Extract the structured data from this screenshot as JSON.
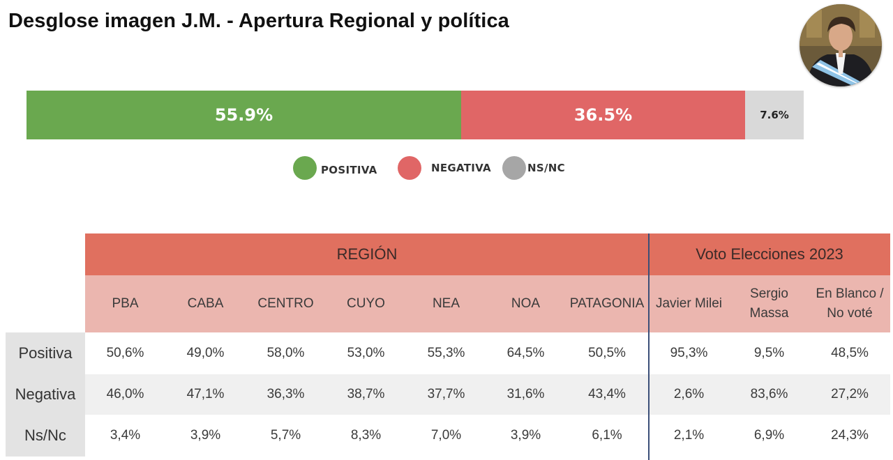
{
  "title": "Desglose imagen J.M. - Apertura Regional y política",
  "chart_data": [
    {
      "type": "bar",
      "orientation": "horizontal-stacked",
      "categories": [
        "POSITIVA",
        "NEGATIVA",
        "NS/NC"
      ],
      "values": [
        55.9,
        36.5,
        7.6
      ],
      "labels": [
        "55.9%",
        "36.5%",
        "7.6%"
      ],
      "colors": [
        "#6aa84f",
        "#e06666",
        "#d9d9d9"
      ],
      "legend": [
        {
          "label": "POSITIVA",
          "color": "#6aa84f"
        },
        {
          "label": "NEGATIVA",
          "color": "#e06666"
        },
        {
          "label": "NS/NC",
          "color": "#a6a6a6"
        }
      ],
      "legend_position": "bottom"
    },
    {
      "type": "table",
      "groups": [
        {
          "label": "REGIÓN",
          "span": 7
        },
        {
          "label": "Voto Elecciones 2023",
          "span": 3
        }
      ],
      "columns": [
        "PBA",
        "CABA",
        "CENTRO",
        "CUYO",
        "NEA",
        "NOA",
        "PATAGONIA",
        "Javier Milei",
        "Sergio\nMassa",
        "En Blanco /\nNo voté"
      ],
      "rows": [
        {
          "label": "Positiva",
          "values": [
            "50,6%",
            "49,0%",
            "58,0%",
            "53,0%",
            "55,3%",
            "64,5%",
            "50,5%",
            "95,3%",
            "9,5%",
            "48,5%"
          ]
        },
        {
          "label": "Negativa",
          "values": [
            "46,0%",
            "47,1%",
            "36,3%",
            "38,7%",
            "37,7%",
            "31,6%",
            "43,4%",
            "2,6%",
            "83,6%",
            "27,2%"
          ]
        },
        {
          "label": "Ns/Nc",
          "values": [
            "3,4%",
            "3,9%",
            "5,7%",
            "8,3%",
            "7,0%",
            "3,9%",
            "6,1%",
            "2,1%",
            "6,9%",
            "24,3%"
          ]
        }
      ],
      "colors": {
        "header": "#e0705f",
        "subheader": "#ebb6af",
        "row_label": "#e3e3e3",
        "row_alt": "#f0f0f0",
        "divider": "#3b4f78"
      }
    }
  ],
  "avatar": {
    "icon": "portrait-photo-icon"
  }
}
